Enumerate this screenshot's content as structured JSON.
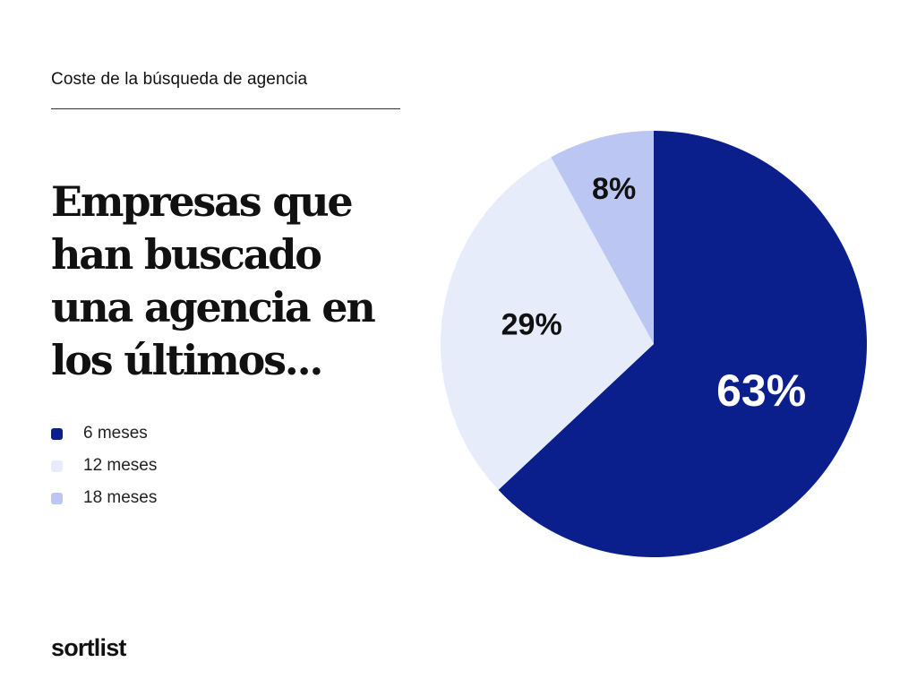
{
  "header": {
    "eyebrow": "Coste de la búsqueda de agencia",
    "headline_lines": [
      "Empresas que",
      "han buscado",
      "una agencia en",
      "los últimos..."
    ]
  },
  "brand": {
    "name": "sortlist"
  },
  "chart_data": {
    "type": "pie",
    "title": "",
    "legend_position": "left",
    "slices": [
      {
        "name": "6 meses",
        "value": 63,
        "label": "63%",
        "color": "#0a1e8c",
        "label_color": "#ffffff"
      },
      {
        "name": "12 meses",
        "value": 29,
        "label": "29%",
        "color": "#e7ecfa",
        "label_color": "#111111"
      },
      {
        "name": "18 meses",
        "value": 8,
        "label": "8%",
        "color": "#bcc6f3",
        "label_color": "#111111"
      }
    ]
  }
}
